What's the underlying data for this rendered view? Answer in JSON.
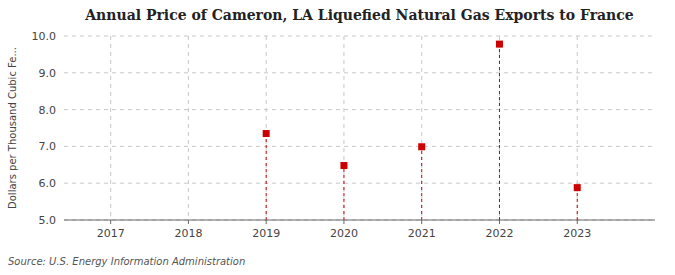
{
  "chart_data": {
    "type": "scatter",
    "title": "Annual Price of Cameron, LA Liquefied Natural Gas Exports to France",
    "ylabel": "Dollars per Thousand Cubic Fe...",
    "source": "Source: U.S. Energy Information Administration",
    "x": [
      2019,
      2020,
      2021,
      2022,
      2023
    ],
    "values": [
      7.35,
      6.48,
      6.99,
      9.78,
      5.88
    ],
    "color": "#cc0000",
    "marker": "square",
    "xlim": [
      2016.4,
      2024.0
    ],
    "ylim": [
      5.0,
      10.0
    ],
    "xticks": [
      2017,
      2018,
      2019,
      2020,
      2021,
      2022,
      2023
    ],
    "yticks": [
      {
        "value": 5.0,
        "label": "5.0"
      },
      {
        "value": 6.0,
        "label": "6.0"
      },
      {
        "value": 7.0,
        "label": "7.0"
      },
      {
        "value": 8.0,
        "label": "8.0"
      },
      {
        "value": 9.0,
        "label": "9.0"
      },
      {
        "value": 10.0,
        "label": "10.0"
      }
    ],
    "grid": true
  }
}
